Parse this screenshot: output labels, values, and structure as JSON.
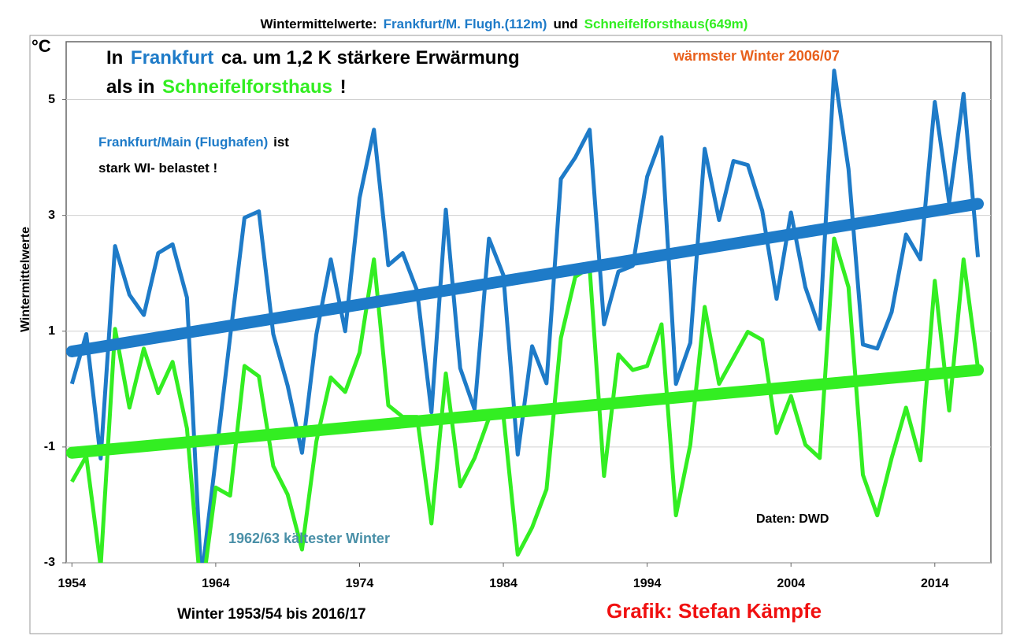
{
  "chart_data": {
    "type": "line",
    "title": "Wintermittelwerte:",
    "title_joiner": "und",
    "y_unit": "°C",
    "ylabel": "Wintermittelwerte",
    "xlabel": "Winter 1953/54 bis 2016/17",
    "credit": "Grafik: Stefan Kämpfe",
    "source": "Daten: DWD",
    "x": [
      1954,
      1955,
      1956,
      1957,
      1958,
      1959,
      1960,
      1961,
      1962,
      1963,
      1964,
      1965,
      1966,
      1967,
      1968,
      1969,
      1970,
      1971,
      1972,
      1973,
      1974,
      1975,
      1976,
      1977,
      1978,
      1979,
      1980,
      1981,
      1982,
      1983,
      1984,
      1985,
      1986,
      1987,
      1988,
      1989,
      1990,
      1991,
      1992,
      1993,
      1994,
      1995,
      1996,
      1997,
      1998,
      1999,
      2000,
      2001,
      2002,
      2003,
      2004,
      2005,
      2006,
      2007,
      2008,
      2009,
      2010,
      2011,
      2012,
      2013,
      2014,
      2015,
      2016,
      2017
    ],
    "series": [
      {
        "name": "Frankfurt/M. Flugh.(112m)",
        "color": "#1e7bc8",
        "values": [
          0.09,
          0.95,
          -1.2,
          2.47,
          1.63,
          1.28,
          2.35,
          2.5,
          1.58,
          -3.3,
          -1.2,
          0.9,
          2.96,
          3.07,
          0.95,
          0.06,
          -1.1,
          0.95,
          2.24,
          1.0,
          3.3,
          4.48,
          2.14,
          2.35,
          1.7,
          -0.4,
          3.1,
          0.36,
          -0.35,
          2.6,
          1.97,
          -1.13,
          0.74,
          0.1,
          3.63,
          4.0,
          4.48,
          1.12,
          2.03,
          2.13,
          3.67,
          4.35,
          0.09,
          0.8,
          4.15,
          2.92,
          3.94,
          3.87,
          3.08,
          1.56,
          3.05,
          1.76,
          1.04,
          5.5,
          3.8,
          0.77,
          0.7,
          1.33,
          2.67,
          2.24,
          4.96,
          3.22,
          5.1,
          2.28
        ]
      },
      {
        "name": "Schneifelforsthaus(649m)",
        "color": "#33ee22",
        "values": [
          -1.6,
          -1.16,
          -3.07,
          1.04,
          -0.32,
          0.7,
          -0.07,
          0.47,
          -0.68,
          -3.6,
          -1.7,
          -1.84,
          0.4,
          0.22,
          -1.33,
          -1.82,
          -2.77,
          -0.9,
          0.2,
          -0.05,
          0.63,
          2.24,
          -0.28,
          -0.48,
          -0.48,
          -2.32,
          0.27,
          -1.68,
          -1.19,
          -0.5,
          -0.45,
          -2.86,
          -2.39,
          -1.73,
          0.88,
          1.94,
          2.1,
          -1.5,
          0.6,
          0.33,
          0.4,
          1.12,
          -2.18,
          -0.96,
          1.42,
          0.09,
          0.54,
          0.99,
          0.85,
          -0.76,
          -0.12,
          -0.96,
          -1.19,
          2.6,
          1.76,
          -1.48,
          -2.18,
          -1.19,
          -0.32,
          -1.23,
          1.87,
          -0.37,
          2.24,
          0.36
        ]
      }
    ],
    "trends": [
      {
        "color": "#1e7bc8",
        "x": [
          1954,
          2017
        ],
        "values": [
          0.65,
          3.2
        ]
      },
      {
        "color": "#33ee22",
        "x": [
          1954,
          2017
        ],
        "values": [
          -1.1,
          0.33
        ]
      }
    ],
    "xlim": [
      1953.6,
      2017.9
    ],
    "ylim": [
      -3,
      6
    ],
    "xticks": [
      1954,
      1964,
      1974,
      1984,
      1994,
      2004,
      2014
    ],
    "yticks": [
      -3,
      -1,
      1,
      3,
      5
    ],
    "grid": true,
    "annotations": [
      {
        "parts": [
          {
            "text": "In",
            "color": "#000000"
          },
          {
            "text": "Frankfurt",
            "color": "#1e7bc8"
          },
          {
            "text": "ca. um 1,2 K stärkere Erwärmung",
            "color": "#000000"
          }
        ]
      },
      {
        "parts": [
          {
            "text": "als in",
            "color": "#000000"
          },
          {
            "text": "Schneifelforsthaus",
            "color": "#33ee22"
          },
          {
            "text": "!",
            "color": "#000000"
          }
        ]
      },
      {
        "parts": [
          {
            "text": "wärmster Winter 2006/07",
            "color": "#e8601c"
          }
        ]
      },
      {
        "parts": [
          {
            "text": "Frankfurt/Main (Flughafen)",
            "color": "#1e7bc8"
          },
          {
            "text": "ist",
            "color": "#000000"
          }
        ]
      },
      {
        "parts": [
          {
            "text": "stark WI- belastet !",
            "color": "#000000"
          }
        ]
      },
      {
        "parts": [
          {
            "text": "1962/63 kältester Winter",
            "color": "#4a90a8"
          }
        ]
      }
    ]
  }
}
